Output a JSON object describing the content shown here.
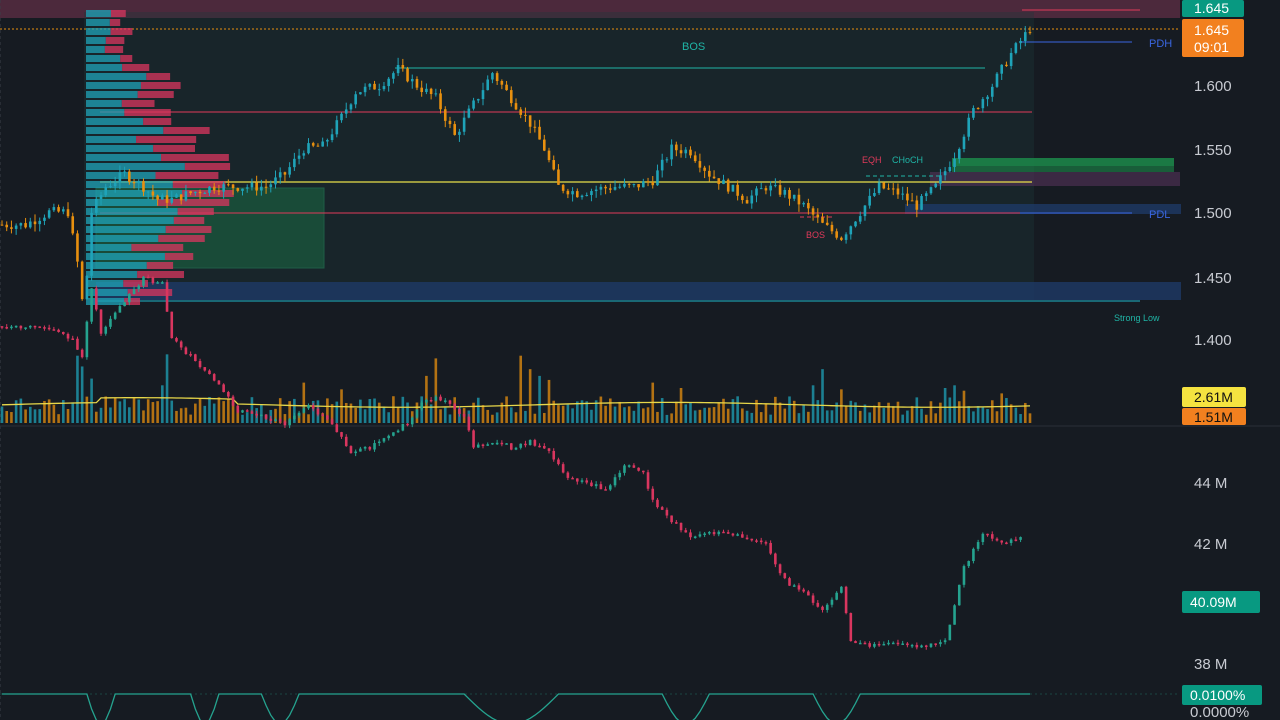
{
  "colors": {
    "background": "#161b22",
    "up": "#1fa3b8",
    "down": "#e8900f",
    "up2": "#25a38f",
    "down2": "#d9365f",
    "ma": "#e8d84a",
    "axis_text": "#c8cbd2",
    "price_tag": "#089981",
    "timer_tag": "#f2801f",
    "vol_tag_1": "#f5e340",
    "vol_tag_2": "#f2801f",
    "cvd_tag": "#089981"
  },
  "chart_data": [
    {
      "name": "price",
      "type": "candlestick",
      "y_ticks": [
        "1.400",
        "1.450",
        "1.500",
        "1.550",
        "1.600"
      ],
      "ylim": [
        1.38,
        1.66
      ],
      "last_price": "1.645",
      "last_price_tag": "1.645",
      "countdown": "09:01",
      "annotations": {
        "bos_top": "BOS",
        "bos_bottom": "BOS",
        "eqh": "EQH",
        "choch": "CHoCH",
        "pdh": "PDH",
        "pdl": "PDL",
        "strong_low": "Strong Low"
      },
      "levels": {
        "bos_top": 1.613,
        "red_upper": 1.58,
        "poc": 1.524,
        "red_lower": 1.5,
        "strong_low": 1.43,
        "pdh": 1.633,
        "pdl": 1.5,
        "recent_high": 1.647
      },
      "anchors": [
        [
          0,
          1.49
        ],
        [
          5,
          1.49
        ],
        [
          10,
          1.5
        ],
        [
          14,
          1.5
        ],
        [
          16,
          1.46
        ],
        [
          17,
          1.43
        ],
        [
          18,
          1.45
        ],
        [
          19,
          1.5
        ],
        [
          22,
          1.52
        ],
        [
          26,
          1.53
        ],
        [
          30,
          1.52
        ],
        [
          33,
          1.51
        ],
        [
          36,
          1.51
        ],
        [
          40,
          1.515
        ],
        [
          45,
          1.52
        ],
        [
          50,
          1.52
        ],
        [
          56,
          1.52
        ],
        [
          58,
          1.525
        ],
        [
          60,
          1.53
        ],
        [
          64,
          1.55
        ],
        [
          68,
          1.552
        ],
        [
          72,
          1.575
        ],
        [
          75,
          1.595
        ],
        [
          80,
          1.6
        ],
        [
          84,
          1.613
        ],
        [
          88,
          1.6
        ],
        [
          92,
          1.59
        ],
        [
          96,
          1.56
        ],
        [
          100,
          1.585
        ],
        [
          104,
          1.61
        ],
        [
          108,
          1.59
        ],
        [
          112,
          1.57
        ],
        [
          115,
          1.55
        ],
        [
          118,
          1.52
        ],
        [
          122,
          1.515
        ],
        [
          126,
          1.518
        ],
        [
          130,
          1.52
        ],
        [
          134,
          1.52
        ],
        [
          138,
          1.525
        ],
        [
          142,
          1.55
        ],
        [
          146,
          1.548
        ],
        [
          150,
          1.53
        ],
        [
          154,
          1.52
        ],
        [
          158,
          1.51
        ],
        [
          162,
          1.52
        ],
        [
          166,
          1.515
        ],
        [
          170,
          1.505
        ],
        [
          174,
          1.49
        ],
        [
          178,
          1.48
        ],
        [
          182,
          1.5
        ],
        [
          186,
          1.52
        ],
        [
          190,
          1.515
        ],
        [
          194,
          1.505
        ],
        [
          198,
          1.52
        ],
        [
          202,
          1.545
        ],
        [
          206,
          1.58
        ],
        [
          210,
          1.6
        ],
        [
          214,
          1.625
        ],
        [
          218,
          1.645
        ]
      ]
    },
    {
      "name": "volume",
      "type": "bar",
      "value_tag_1": "2.61M",
      "value_tag_2": "1.51M",
      "scale_max": 5.2,
      "spikes": [
        {
          "i": 16,
          "v": 5.0
        },
        {
          "i": 17,
          "v": 4.2
        },
        {
          "i": 19,
          "v": 3.3
        },
        {
          "i": 35,
          "v": 5.1
        },
        {
          "i": 34,
          "v": 2.8
        },
        {
          "i": 64,
          "v": 3.0
        },
        {
          "i": 72,
          "v": 2.5
        },
        {
          "i": 92,
          "v": 4.8
        },
        {
          "i": 90,
          "v": 3.5
        },
        {
          "i": 110,
          "v": 5.0
        },
        {
          "i": 112,
          "v": 4.0
        },
        {
          "i": 114,
          "v": 3.5
        },
        {
          "i": 116,
          "v": 3.2
        },
        {
          "i": 138,
          "v": 3.0
        },
        {
          "i": 144,
          "v": 2.6
        },
        {
          "i": 172,
          "v": 2.8
        },
        {
          "i": 174,
          "v": 4.0
        },
        {
          "i": 178,
          "v": 2.5
        },
        {
          "i": 200,
          "v": 2.6
        },
        {
          "i": 202,
          "v": 2.8
        },
        {
          "i": 204,
          "v": 2.4
        },
        {
          "i": 212,
          "v": 2.2
        }
      ]
    },
    {
      "name": "cvd",
      "type": "candlestick",
      "y_ticks": [
        "38 M",
        "40 M",
        "42 M",
        "44 M"
      ],
      "ylim": [
        37.2,
        45.2
      ],
      "value_tag": "40.09M",
      "anchors": [
        [
          0,
          43.6
        ],
        [
          8,
          43.6
        ],
        [
          15,
          43.4
        ],
        [
          17,
          43.1
        ],
        [
          19,
          44.2
        ],
        [
          21,
          43.5
        ],
        [
          25,
          43.9
        ],
        [
          30,
          44.4
        ],
        [
          34,
          44.3
        ],
        [
          36,
          43.4
        ],
        [
          40,
          43.1
        ],
        [
          45,
          42.7
        ],
        [
          50,
          42.2
        ],
        [
          55,
          42.1
        ],
        [
          60,
          42.0
        ],
        [
          65,
          42.3
        ],
        [
          70,
          42.0
        ],
        [
          74,
          41.5
        ],
        [
          78,
          41.6
        ],
        [
          82,
          41.8
        ],
        [
          86,
          42.0
        ],
        [
          90,
          42.4
        ],
        [
          94,
          42.4
        ],
        [
          98,
          42.1
        ],
        [
          100,
          41.6
        ],
        [
          104,
          41.7
        ],
        [
          108,
          41.6
        ],
        [
          112,
          41.7
        ],
        [
          116,
          41.5
        ],
        [
          120,
          41.1
        ],
        [
          124,
          41.0
        ],
        [
          128,
          40.9
        ],
        [
          132,
          41.3
        ],
        [
          136,
          41.2
        ],
        [
          138,
          40.7
        ],
        [
          142,
          40.4
        ],
        [
          146,
          40.1
        ],
        [
          150,
          40.2
        ],
        [
          154,
          40.2
        ],
        [
          158,
          40.1
        ],
        [
          162,
          40.0
        ],
        [
          166,
          39.4
        ],
        [
          170,
          39.2
        ],
        [
          174,
          38.9
        ],
        [
          178,
          39.3
        ],
        [
          180,
          38.4
        ],
        [
          184,
          38.3
        ],
        [
          188,
          38.4
        ],
        [
          192,
          38.3
        ],
        [
          196,
          38.3
        ],
        [
          200,
          38.4
        ],
        [
          204,
          39.6
        ],
        [
          208,
          40.2
        ],
        [
          212,
          40.0
        ],
        [
          216,
          40.1
        ]
      ]
    },
    {
      "name": "funding",
      "type": "line",
      "value_tag": "0.0100%",
      "bottom_tag": "0.0000%"
    }
  ]
}
